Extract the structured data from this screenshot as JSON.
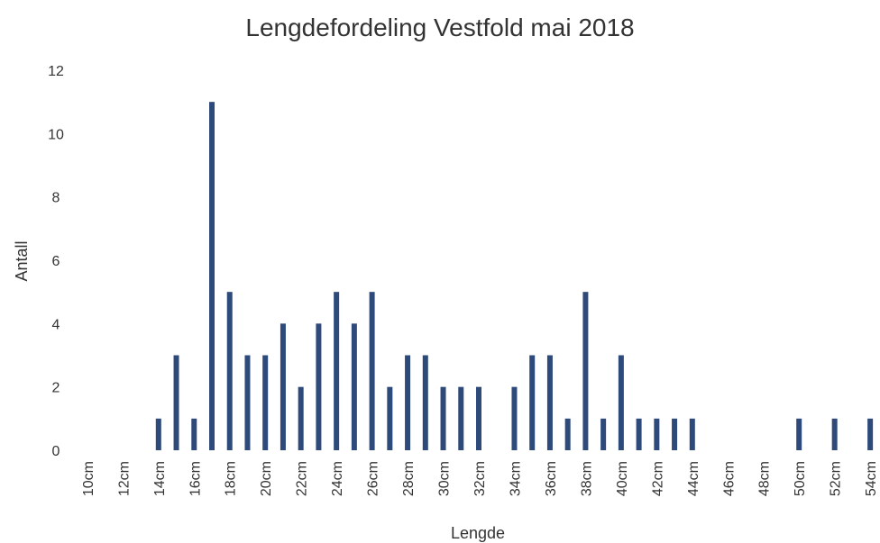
{
  "chart_data": {
    "type": "bar",
    "title": "Lengdefordeling Vestfold mai 2018",
    "x_label": "Lengde",
    "y_label": "Antall",
    "categories": [
      "10cm",
      null,
      "12cm",
      null,
      "14cm",
      null,
      "16cm",
      null,
      "18cm",
      null,
      "20cm",
      null,
      "22cm",
      null,
      "24cm",
      null,
      "26cm",
      null,
      "28cm",
      null,
      "30cm",
      null,
      "32cm",
      null,
      "34cm",
      null,
      "36cm",
      null,
      "38cm",
      null,
      "40cm",
      null,
      "42cm",
      null,
      "44cm",
      null,
      "46cm",
      null,
      "48cm",
      null,
      "50cm",
      null,
      "52cm",
      null,
      "54cm"
    ],
    "values": [
      0,
      0,
      0,
      0,
      1,
      3,
      1,
      11,
      5,
      3,
      3,
      4,
      2,
      4,
      5,
      4,
      5,
      2,
      3,
      3,
      2,
      2,
      2,
      0,
      2,
      3,
      3,
      1,
      5,
      1,
      3,
      1,
      1,
      1,
      1,
      0,
      0,
      0,
      0,
      0,
      1,
      0,
      1,
      0,
      1
    ],
    "color": "#2e4a7a",
    "ylim": [
      0,
      12
    ],
    "yticks": [
      0,
      2,
      4,
      6,
      8,
      10,
      12
    ],
    "grid": false
  }
}
